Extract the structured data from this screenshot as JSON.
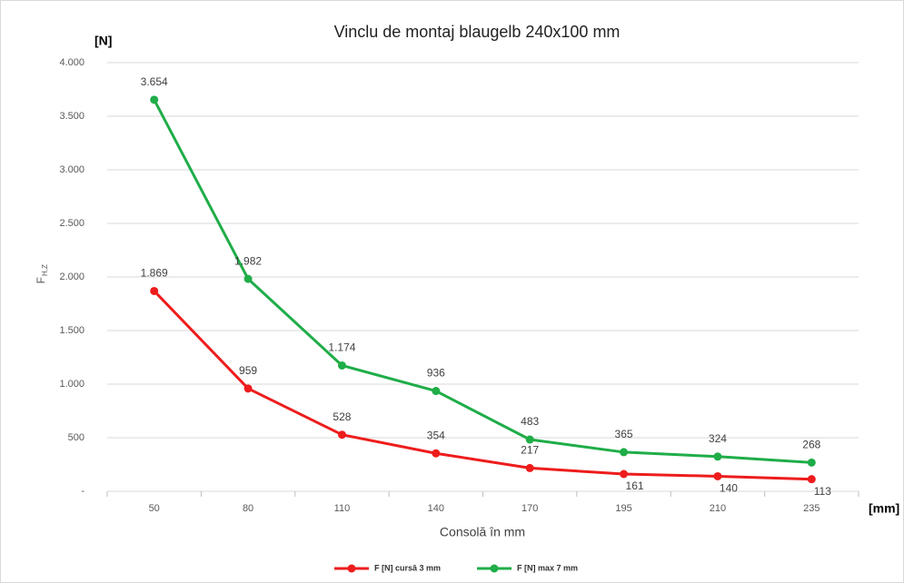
{
  "chart_data": {
    "type": "line",
    "title": "Vinclu de montaj blaugelb 240x100 mm",
    "y_unit": "[N]",
    "x_unit": "[mm]",
    "xlabel": "Consolă în mm",
    "ylabel": "F",
    "ylabel_sub": "H,Z",
    "categories": [
      "50",
      "80",
      "110",
      "140",
      "170",
      "195",
      "210",
      "235"
    ],
    "series": [
      {
        "name": "F [N] cursă 3 mm",
        "color": "#ee1c1c",
        "values": [
          1869,
          959,
          528,
          354,
          217,
          161,
          140,
          113
        ],
        "value_labels": [
          "1.869",
          "959",
          "528",
          "354",
          "217",
          "161",
          "140",
          "113"
        ]
      },
      {
        "name": "F [N] max 7 mm",
        "color": "#1fad48",
        "values": [
          3654,
          1982,
          1174,
          936,
          483,
          365,
          324,
          268
        ],
        "value_labels": [
          "3.654",
          "1.982",
          "1.174",
          "936",
          "483",
          "365",
          "324",
          "268"
        ]
      }
    ],
    "ylim": [
      0,
      4000
    ],
    "yticks": [
      {
        "value": 0,
        "label": "-"
      },
      500,
      {
        "value": 1000,
        "label": "1.000"
      },
      {
        "value": 1500,
        "label": "1.500"
      },
      {
        "value": 2000,
        "label": "2.000"
      },
      {
        "value": 2500,
        "label": "2.500"
      },
      {
        "value": 3000,
        "label": "3.000"
      },
      {
        "value": 3500,
        "label": "3.500"
      },
      {
        "value": 4000,
        "label": "4.000"
      }
    ],
    "grid": true,
    "legend": "bottom"
  }
}
